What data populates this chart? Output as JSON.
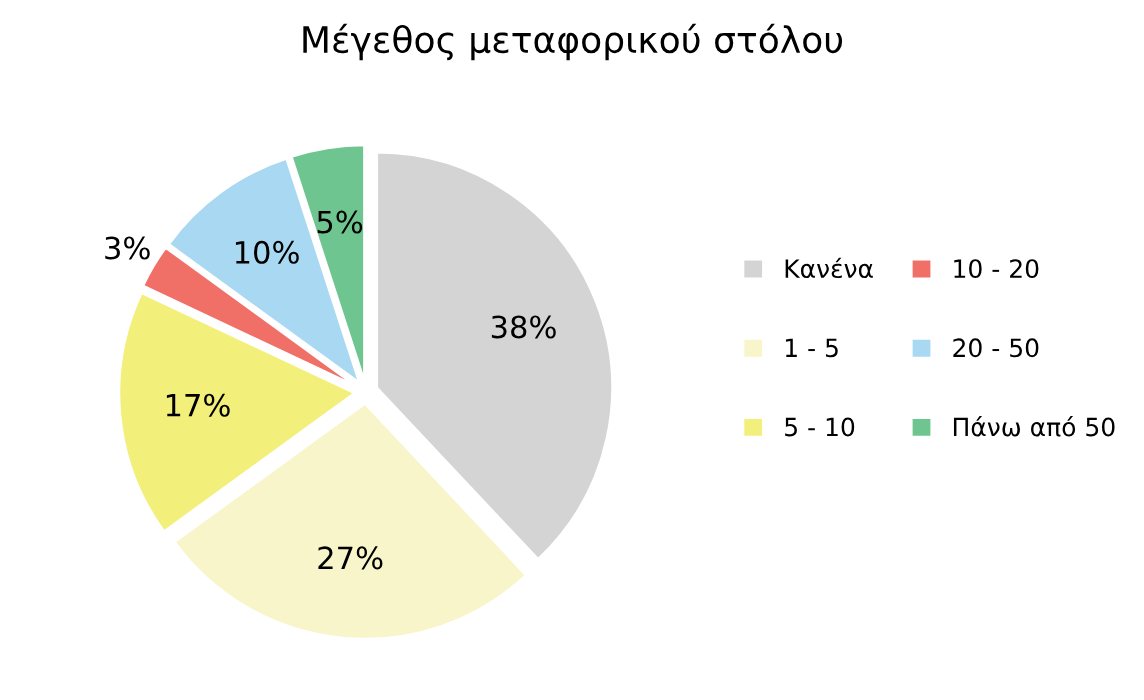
{
  "chart_data": {
    "type": "pie",
    "title": "Μέγεθος μεταφορικού στόλου",
    "categories": [
      "Κανένα",
      "1 - 5",
      "5 - 10",
      "10 - 20",
      "20 - 50",
      "Πάνω από 50"
    ],
    "values": [
      38,
      27,
      17,
      3,
      10,
      5
    ],
    "colors": [
      "#d4d4d4",
      "#f7f5c9",
      "#f2ef7a",
      "#f07068",
      "#a9d8f2",
      "#6fc58f"
    ],
    "value_labels": [
      "38%",
      "27%",
      "17%",
      "3%",
      "10%",
      "5%"
    ],
    "legend": "right"
  }
}
